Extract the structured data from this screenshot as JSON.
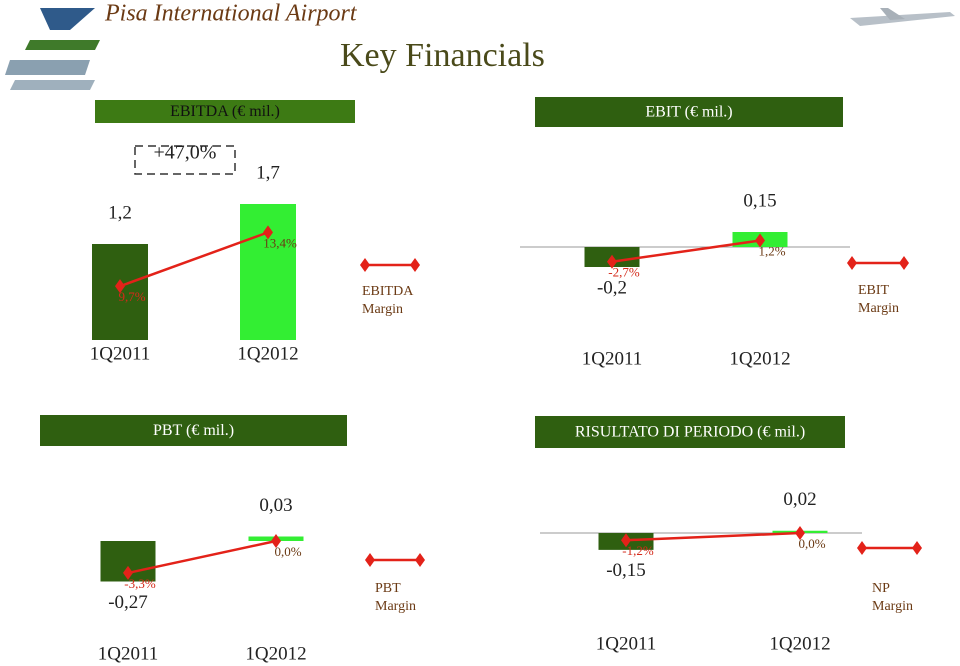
{
  "header": {
    "title": "Pisa International Airport",
    "subtitle": "Key Financials"
  },
  "chart_data": [
    {
      "type": "bar",
      "title": "EBITDA (€ mil.)",
      "categories": [
        "1Q2011",
        "1Q2012"
      ],
      "series": [
        {
          "values": [
            1.2,
            1.7
          ],
          "value_labels": [
            "1,2",
            "1,7"
          ],
          "colors": [
            "#2f5f10",
            "#33ee33"
          ]
        },
        {
          "name": "EBITDA Margin",
          "type": "line",
          "axis": "y2",
          "color": "#e32219",
          "values": [
            9.7,
            13.4
          ],
          "value_labels": [
            "9,7%",
            "13,4%"
          ]
        }
      ],
      "ylim": [
        0,
        2
      ],
      "y2lim": [
        6,
        17
      ],
      "annotation": "+47,0%"
    },
    {
      "type": "bar",
      "title": "EBIT (€ mil.)",
      "categories": [
        "1Q2011",
        "1Q2012"
      ],
      "series": [
        {
          "values": [
            -0.2,
            0.15
          ],
          "value_labels": [
            "-0,2",
            "0,15"
          ],
          "colors": [
            "#2f5f10",
            "#33ee33"
          ]
        },
        {
          "name": "EBIT Margin",
          "type": "line",
          "axis": "y2",
          "color": "#e32219",
          "values": [
            -2.7,
            1.2
          ],
          "value_labels": [
            "-2,7%",
            "1,2%"
          ]
        }
      ],
      "ylim": [
        -0.6,
        0.6
      ],
      "y2lim": [
        -11,
        11
      ]
    },
    {
      "type": "bar",
      "title": "PBT (€ mil.)",
      "categories": [
        "1Q2011",
        "1Q2012"
      ],
      "series": [
        {
          "values": [
            -0.27,
            0.03
          ],
          "value_labels": [
            "-0,27",
            "0,03"
          ],
          "colors": [
            "#2f5f10",
            "#33ee33"
          ]
        },
        {
          "name": "PBT Margin",
          "type": "line",
          "axis": "y2",
          "color": "#e32219",
          "values": [
            -3.3,
            0.0
          ],
          "value_labels": [
            "-3,3%",
            "0,0%"
          ]
        }
      ],
      "ylim": [
        -0.6,
        0.6
      ],
      "y2lim": [
        -9.3,
        9.3
      ]
    },
    {
      "type": "bar",
      "title": "RISULTATO DI PERIODO (€ mil.)",
      "categories": [
        "1Q2011",
        "1Q2012"
      ],
      "series": [
        {
          "values": [
            -0.15,
            0.02
          ],
          "value_labels": [
            "-0,15",
            "0,02"
          ],
          "colors": [
            "#2f5f10",
            "#33ee33"
          ]
        },
        {
          "name": "NP Margin",
          "type": "line",
          "axis": "y2",
          "color": "#e32219",
          "values": [
            -1.2,
            0.0
          ],
          "value_labels": [
            "-1,2%",
            "0,0%"
          ]
        }
      ],
      "ylim": [
        -0.8,
        0.8
      ],
      "y2lim": [
        -15,
        15
      ]
    }
  ]
}
